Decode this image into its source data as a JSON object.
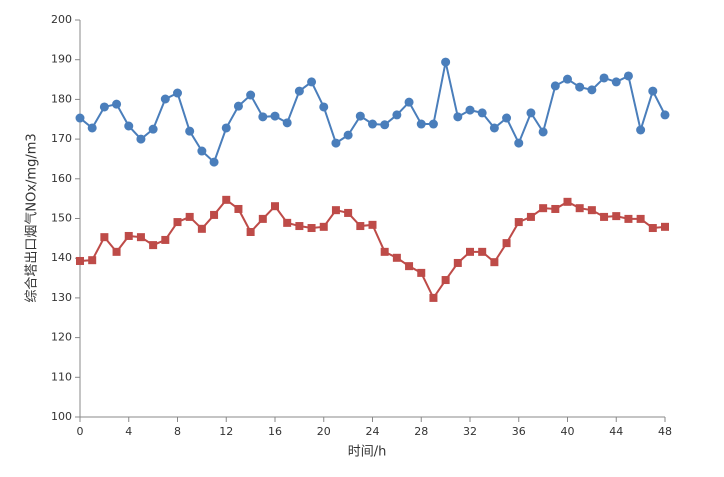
{
  "chart_data": {
    "type": "line",
    "x_label": "时间/h",
    "y_label": "综合塔出口烟气NOx/mg/m3",
    "x": [
      0,
      1,
      2,
      3,
      4,
      5,
      6,
      7,
      8,
      9,
      10,
      11,
      12,
      13,
      14,
      15,
      16,
      17,
      18,
      19,
      20,
      21,
      22,
      23,
      24,
      25,
      26,
      27,
      28,
      29,
      30,
      31,
      32,
      33,
      34,
      35,
      36,
      37,
      38,
      39,
      40,
      41,
      42,
      43,
      44,
      45,
      46,
      47,
      48
    ],
    "series": [
      {
        "color": "#4a7ebb",
        "marker": "circle",
        "values": [
          175.3,
          172.8,
          178.1,
          178.8,
          173.3,
          170.0,
          172.5,
          180.1,
          181.6,
          172.0,
          167.0,
          164.2,
          172.8,
          178.3,
          181.1,
          175.6,
          175.8,
          174.1,
          182.1,
          184.4,
          178.1,
          169.0,
          171.0,
          175.8,
          173.8,
          173.6,
          176.1,
          179.3,
          173.8,
          173.8,
          189.4,
          175.6,
          177.3,
          176.6,
          172.8,
          175.3,
          169.0,
          176.6,
          171.8,
          183.4,
          185.1,
          183.1,
          182.4,
          185.4,
          184.4,
          185.9,
          172.3,
          182.1,
          176.1
        ]
      },
      {
        "color": "#be4b48",
        "marker": "square",
        "values": [
          139.3,
          139.5,
          145.3,
          141.6,
          145.6,
          145.3,
          143.3,
          144.6,
          149.1,
          150.4,
          147.4,
          150.9,
          154.7,
          152.4,
          146.6,
          149.9,
          153.1,
          148.9,
          148.1,
          147.6,
          147.9,
          152.1,
          151.4,
          148.1,
          148.4,
          141.6,
          140.1,
          138.0,
          136.3,
          130.0,
          134.5,
          138.8,
          141.6,
          141.6,
          139.0,
          143.8,
          149.1,
          150.4,
          152.6,
          152.4,
          154.2,
          152.6,
          152.1,
          150.4,
          150.6,
          149.9,
          149.9,
          147.6,
          147.9
        ]
      }
    ],
    "xlim": [
      0,
      48
    ],
    "xticks": [
      0,
      4,
      8,
      12,
      16,
      20,
      24,
      28,
      32,
      36,
      40,
      44,
      48
    ],
    "ylim": [
      100,
      200
    ],
    "yticks": [
      100,
      110,
      120,
      130,
      140,
      150,
      160,
      170,
      180,
      190,
      200
    ],
    "grid": false
  }
}
